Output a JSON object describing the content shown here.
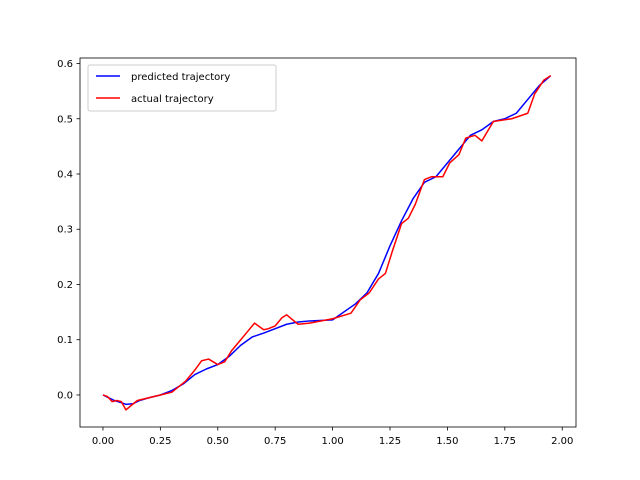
{
  "chart_data": {
    "type": "line",
    "title": "",
    "xlabel": "",
    "ylabel": "",
    "xlim": [
      -0.1,
      2.06
    ],
    "ylim": [
      -0.058,
      0.61
    ],
    "xticks": [
      0.0,
      0.25,
      0.5,
      0.75,
      1.0,
      1.25,
      1.5,
      1.75,
      2.0
    ],
    "xtick_labels": [
      "0.00",
      "0.25",
      "0.50",
      "0.75",
      "1.00",
      "1.25",
      "1.50",
      "1.75",
      "2.00"
    ],
    "yticks": [
      0.0,
      0.1,
      0.2,
      0.3,
      0.4,
      0.5,
      0.6
    ],
    "ytick_labels": [
      "0.0",
      "0.1",
      "0.2",
      "0.3",
      "0.4",
      "0.5",
      "0.6"
    ],
    "grid": false,
    "legend_position": "top-left",
    "series": [
      {
        "name": "predicted trajectory",
        "color": "#0000ff",
        "x": [
          0.0,
          0.02,
          0.05,
          0.08,
          0.1,
          0.13,
          0.16,
          0.2,
          0.25,
          0.3,
          0.35,
          0.4,
          0.45,
          0.5,
          0.55,
          0.6,
          0.65,
          0.7,
          0.75,
          0.8,
          0.85,
          0.9,
          1.0,
          1.1,
          1.15,
          1.2,
          1.25,
          1.3,
          1.35,
          1.4,
          1.45,
          1.5,
          1.55,
          1.6,
          1.65,
          1.7,
          1.75,
          1.8,
          1.85,
          1.9,
          1.95
        ],
        "y": [
          0.0,
          -0.004,
          -0.01,
          -0.014,
          -0.017,
          -0.016,
          -0.01,
          -0.005,
          0.0,
          0.008,
          0.02,
          0.037,
          0.047,
          0.055,
          0.07,
          0.09,
          0.105,
          0.112,
          0.12,
          0.128,
          0.132,
          0.134,
          0.136,
          0.165,
          0.185,
          0.22,
          0.27,
          0.315,
          0.355,
          0.385,
          0.395,
          0.42,
          0.445,
          0.47,
          0.48,
          0.495,
          0.5,
          0.51,
          0.535,
          0.56,
          0.578
        ]
      },
      {
        "name": "actual trajectory",
        "color": "#ff0000",
        "x": [
          0.0,
          0.02,
          0.04,
          0.06,
          0.08,
          0.1,
          0.12,
          0.15,
          0.2,
          0.25,
          0.3,
          0.33,
          0.36,
          0.4,
          0.43,
          0.46,
          0.5,
          0.53,
          0.56,
          0.6,
          0.63,
          0.66,
          0.7,
          0.72,
          0.75,
          0.78,
          0.8,
          0.82,
          0.85,
          0.9,
          1.0,
          1.08,
          1.12,
          1.16,
          1.2,
          1.23,
          1.26,
          1.3,
          1.33,
          1.36,
          1.4,
          1.43,
          1.48,
          1.51,
          1.55,
          1.58,
          1.62,
          1.65,
          1.7,
          1.78,
          1.85,
          1.88,
          1.92,
          1.95
        ],
        "y": [
          0.0,
          -0.003,
          -0.012,
          -0.01,
          -0.012,
          -0.027,
          -0.02,
          -0.01,
          -0.005,
          0.0,
          0.005,
          0.015,
          0.025,
          0.045,
          0.062,
          0.065,
          0.055,
          0.06,
          0.08,
          0.1,
          0.115,
          0.13,
          0.118,
          0.12,
          0.125,
          0.14,
          0.145,
          0.138,
          0.128,
          0.13,
          0.138,
          0.148,
          0.172,
          0.185,
          0.21,
          0.22,
          0.26,
          0.31,
          0.32,
          0.345,
          0.39,
          0.395,
          0.395,
          0.42,
          0.435,
          0.465,
          0.47,
          0.46,
          0.495,
          0.5,
          0.51,
          0.545,
          0.57,
          0.578
        ]
      }
    ]
  }
}
